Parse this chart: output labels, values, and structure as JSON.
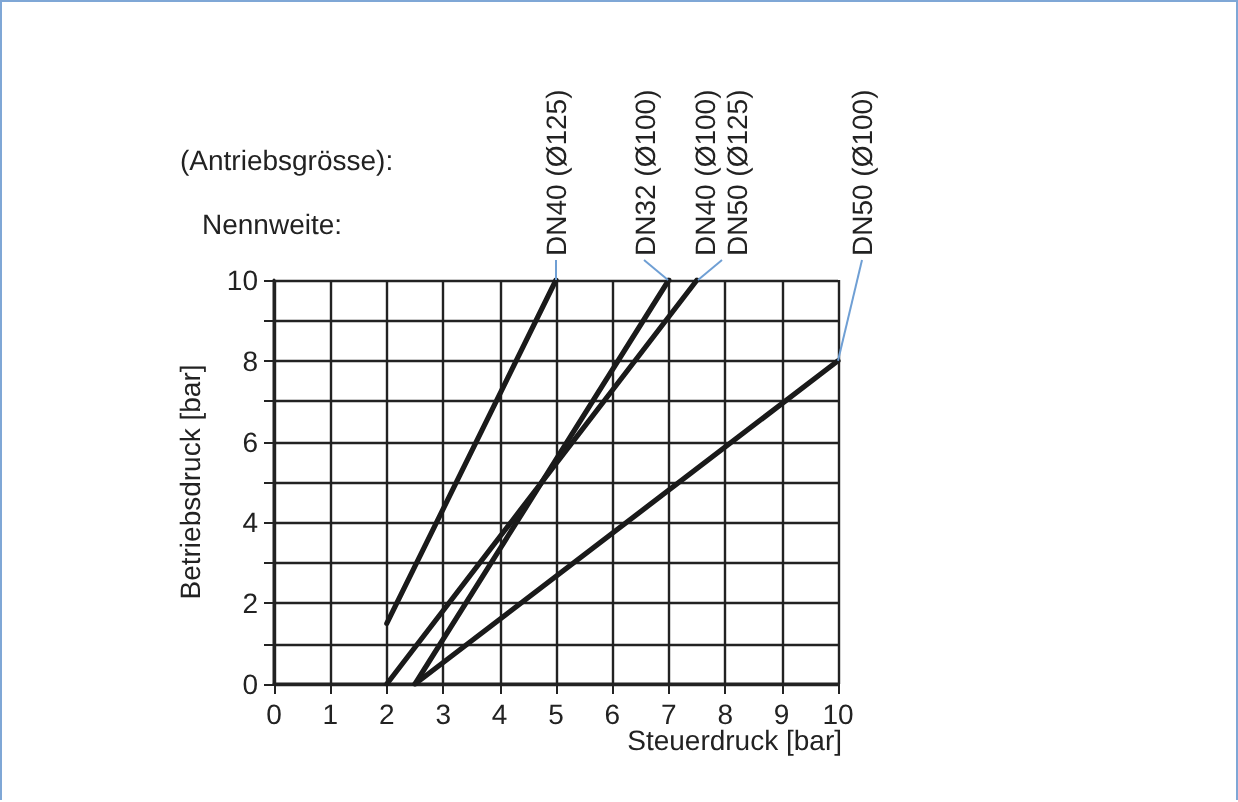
{
  "chart_data": {
    "type": "line",
    "xlabel": "Steuerdruck [bar]",
    "ylabel": "Betriebsdruck [bar]",
    "annotations": [
      "(Antriebsgrösse):",
      "Nennweite:"
    ],
    "xlim": [
      0,
      10
    ],
    "xticks": [
      0,
      1,
      2,
      3,
      4,
      5,
      6,
      7,
      8,
      9,
      10
    ],
    "ylim": [
      0,
      10
    ],
    "yticks": [
      0,
      {
        "value": 1,
        "label": null
      },
      2,
      {
        "value": 3,
        "label": null
      },
      4,
      {
        "value": 5,
        "label": null
      },
      6,
      {
        "value": 7,
        "label": null
      },
      8,
      {
        "value": 9,
        "label": null
      },
      10
    ],
    "grid": true,
    "legend": false,
    "marker": "none",
    "line_style": "solid",
    "series": [
      {
        "name": "DN40 (Ø125)",
        "color": "#1a1a1a",
        "x": [
          2,
          5
        ],
        "values": [
          1.5,
          10
        ]
      },
      {
        "name": "DN32 (Ø100)",
        "color": "#1a1a1a",
        "x": [
          2.5,
          7
        ],
        "values": [
          0,
          10
        ]
      },
      {
        "name": "DN40 (Ø100)\nDN50 (Ø125)",
        "color": "#1a1a1a",
        "x": [
          2,
          7.5
        ],
        "values": [
          0,
          10
        ]
      },
      {
        "name": "DN50 (Ø100)",
        "color": "#1a1a1a",
        "x": [
          2.5,
          10
        ],
        "values": [
          0,
          8
        ]
      }
    ]
  }
}
